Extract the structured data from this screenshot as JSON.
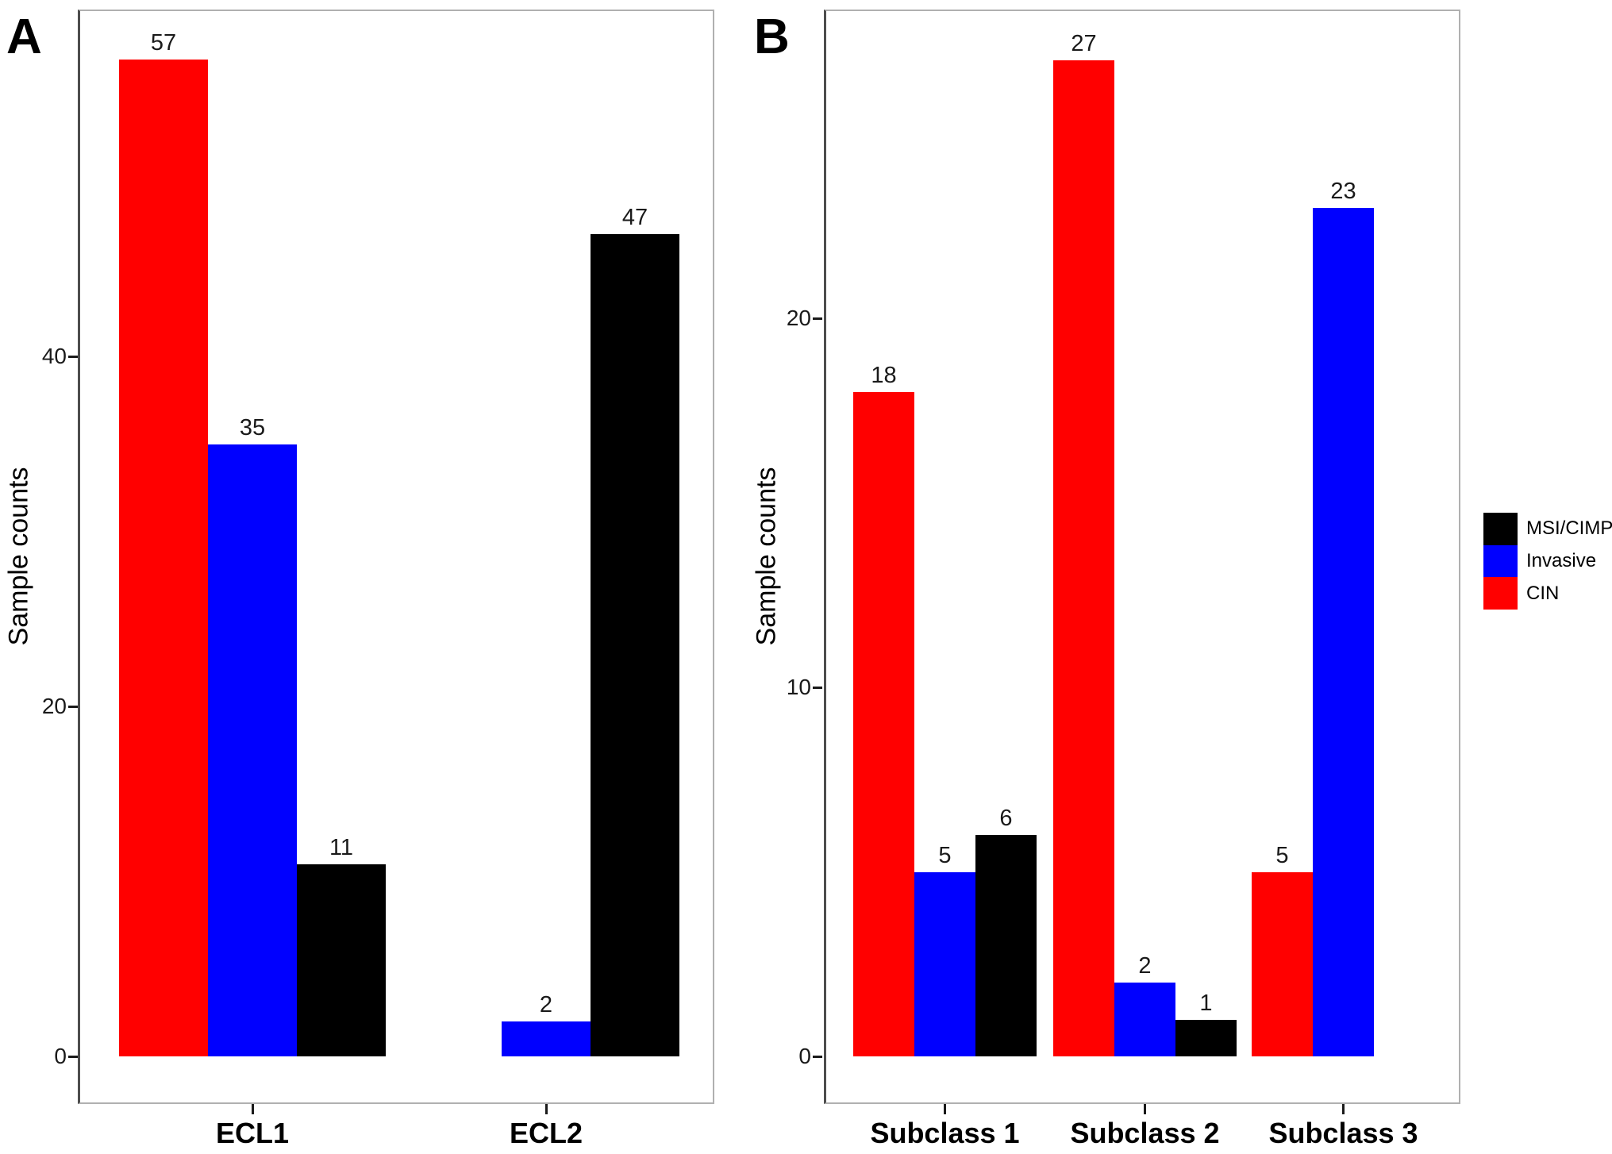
{
  "chart_data": [
    {
      "type": "bar",
      "panel_label": "A",
      "title": "",
      "xlabel": "",
      "ylabel": "Sample counts",
      "ylim": [
        0,
        59
      ],
      "yticks": [
        0,
        20,
        40
      ],
      "grid": false,
      "bar_value_labels": true,
      "categories": [
        "ECL1",
        "ECL2"
      ],
      "series": [
        {
          "name": "CIN",
          "color": "#ff0000",
          "values": [
            57,
            null
          ]
        },
        {
          "name": "Invasive",
          "color": "#0000ff",
          "values": [
            35,
            2
          ]
        },
        {
          "name": "MSI/CIMP",
          "color": "#000000",
          "values": [
            11,
            47
          ]
        }
      ]
    },
    {
      "type": "bar",
      "panel_label": "B",
      "title": "",
      "xlabel": "",
      "ylabel": "Sample counts",
      "ylim": [
        0,
        28.4
      ],
      "yticks": [
        0,
        10,
        20
      ],
      "grid": false,
      "bar_value_labels": true,
      "categories": [
        "Subclass 1",
        "Subclass 2",
        "Subclass 3"
      ],
      "series": [
        {
          "name": "CIN",
          "color": "#ff0000",
          "values": [
            18,
            27,
            5
          ]
        },
        {
          "name": "Invasive",
          "color": "#0000ff",
          "values": [
            5,
            2,
            23
          ]
        },
        {
          "name": "MSI/CIMP",
          "color": "#000000",
          "values": [
            6,
            1,
            null
          ]
        }
      ]
    }
  ],
  "legend": {
    "position": "right",
    "items": [
      {
        "label": "MSI/CIMP",
        "color": "#000000"
      },
      {
        "label": "Invasive",
        "color": "#0000ff"
      },
      {
        "label": "CIN",
        "color": "#ff0000"
      }
    ]
  },
  "colors": {
    "background": "#ffffff",
    "panel_border": "#b0b0b0",
    "axis_line": "#4d4d4d",
    "tick": "#1a1a1a",
    "text": "#000000"
  }
}
